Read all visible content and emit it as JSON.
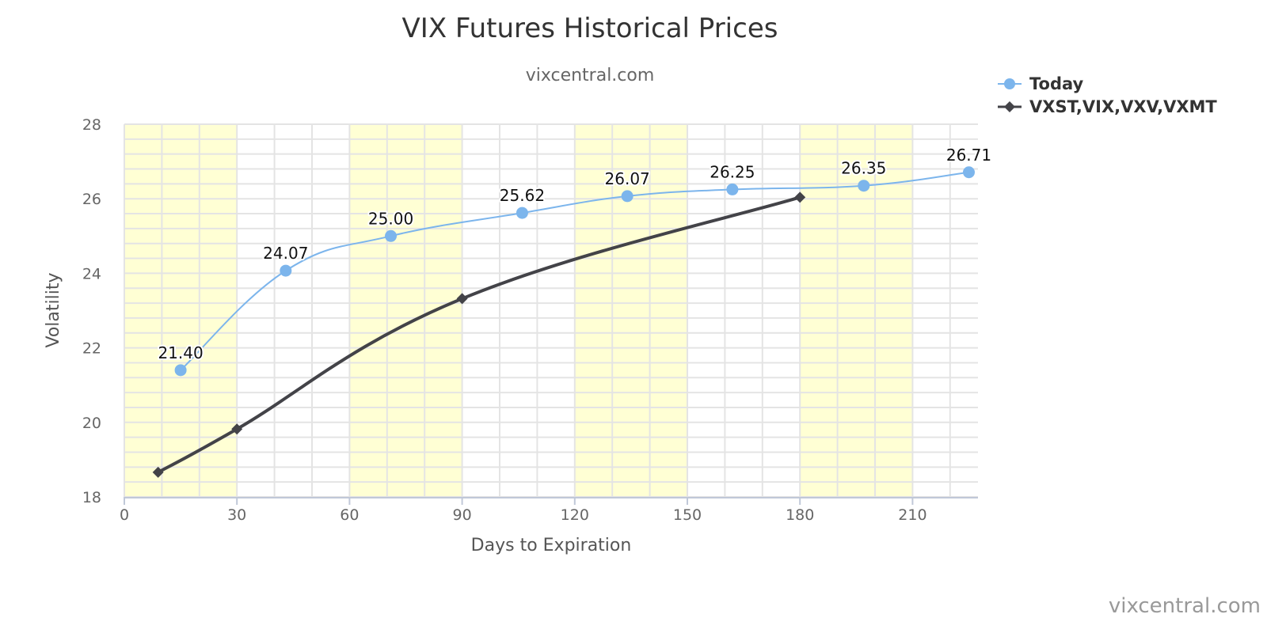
{
  "chart_data": {
    "type": "line",
    "title": "VIX Futures Historical Prices",
    "subtitle": "vixcentral.com",
    "xlabel": "Days to Expiration",
    "ylabel": "Volatility",
    "xlim": [
      0,
      227
    ],
    "ylim": [
      18,
      28
    ],
    "x_ticks": [
      0,
      30,
      60,
      90,
      120,
      150,
      180,
      210
    ],
    "y_ticks": [
      18,
      20,
      22,
      24,
      26,
      28
    ],
    "x_minor_step": 10,
    "y_minor_step": 0.4,
    "grid": true,
    "bands": [
      [
        0,
        30
      ],
      [
        60,
        90
      ],
      [
        120,
        150
      ],
      [
        180,
        210
      ]
    ],
    "band_color": "#ffffd4",
    "legend_position": "top-right",
    "series": [
      {
        "name": "Today",
        "color": "#7cb5ec",
        "marker": "circle",
        "x": [
          15,
          43,
          71,
          106,
          134,
          162,
          197,
          225
        ],
        "y": [
          21.4,
          24.07,
          25.0,
          25.62,
          26.07,
          26.25,
          26.35,
          26.71
        ],
        "labels": [
          "21.40",
          "24.07",
          "25.00",
          "25.62",
          "26.07",
          "26.25",
          "26.35",
          "26.71"
        ]
      },
      {
        "name": "VXST,VIX,VXV,VXMT",
        "color": "#434348",
        "marker": "diamond",
        "x": [
          9,
          30,
          90,
          180
        ],
        "y": [
          18.66,
          19.82,
          23.32,
          26.04
        ]
      }
    ],
    "credit": "vixcentral.com"
  }
}
